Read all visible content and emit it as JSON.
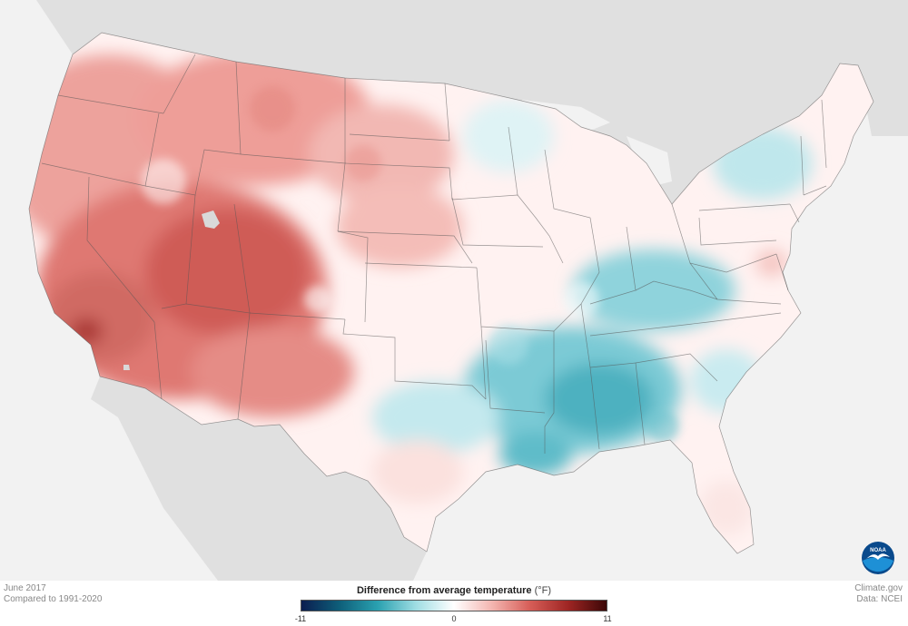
{
  "caption": {
    "month": "June 2017",
    "baseline": "Compared to 1991-2020"
  },
  "credits": {
    "site": "Climate.gov",
    "data_source": "Data: NCEI"
  },
  "legend": {
    "title": "Difference from average temperature",
    "unit": "(°F)",
    "min_label": "-11",
    "mid_label": "0",
    "max_label": "11",
    "min": -11,
    "max": 11,
    "colors": [
      "#0b1d4f",
      "#0e5f7a",
      "#2aa1b0",
      "#9fdde3",
      "#ffffff",
      "#f3b5b0",
      "#d65d57",
      "#9e2523",
      "#3b0707"
    ]
  },
  "logo": {
    "text": "NOAA",
    "colors": {
      "outer": "#0a4a8c",
      "inner": "#1e90d6",
      "bird": "#ffffff"
    }
  },
  "map": {
    "region": "Contiguous United States",
    "land_background": "#e0e0e0",
    "water_background": "#f2f2f2",
    "anomaly_regions": [
      {
        "region": "West / Great Basin / Four Corners",
        "anomaly_F": 6
      },
      {
        "region": "Pacific Northwest",
        "anomaly_F": 4
      },
      {
        "region": "Northern Rockies / Northern Plains",
        "anomaly_F": 3
      },
      {
        "region": "Central Plains",
        "anomaly_F": 2
      },
      {
        "region": "Upper Midwest",
        "anomaly_F": 0
      },
      {
        "region": "Northeast",
        "anomaly_F": 0
      },
      {
        "region": "Ohio Valley / Appalachians",
        "anomaly_F": -3
      },
      {
        "region": "Lower Mississippi Valley / Deep South",
        "anomaly_F": -4
      },
      {
        "region": "Texas",
        "anomaly_F": 1
      },
      {
        "region": "Southeast / Florida",
        "anomaly_F": 0
      }
    ]
  }
}
